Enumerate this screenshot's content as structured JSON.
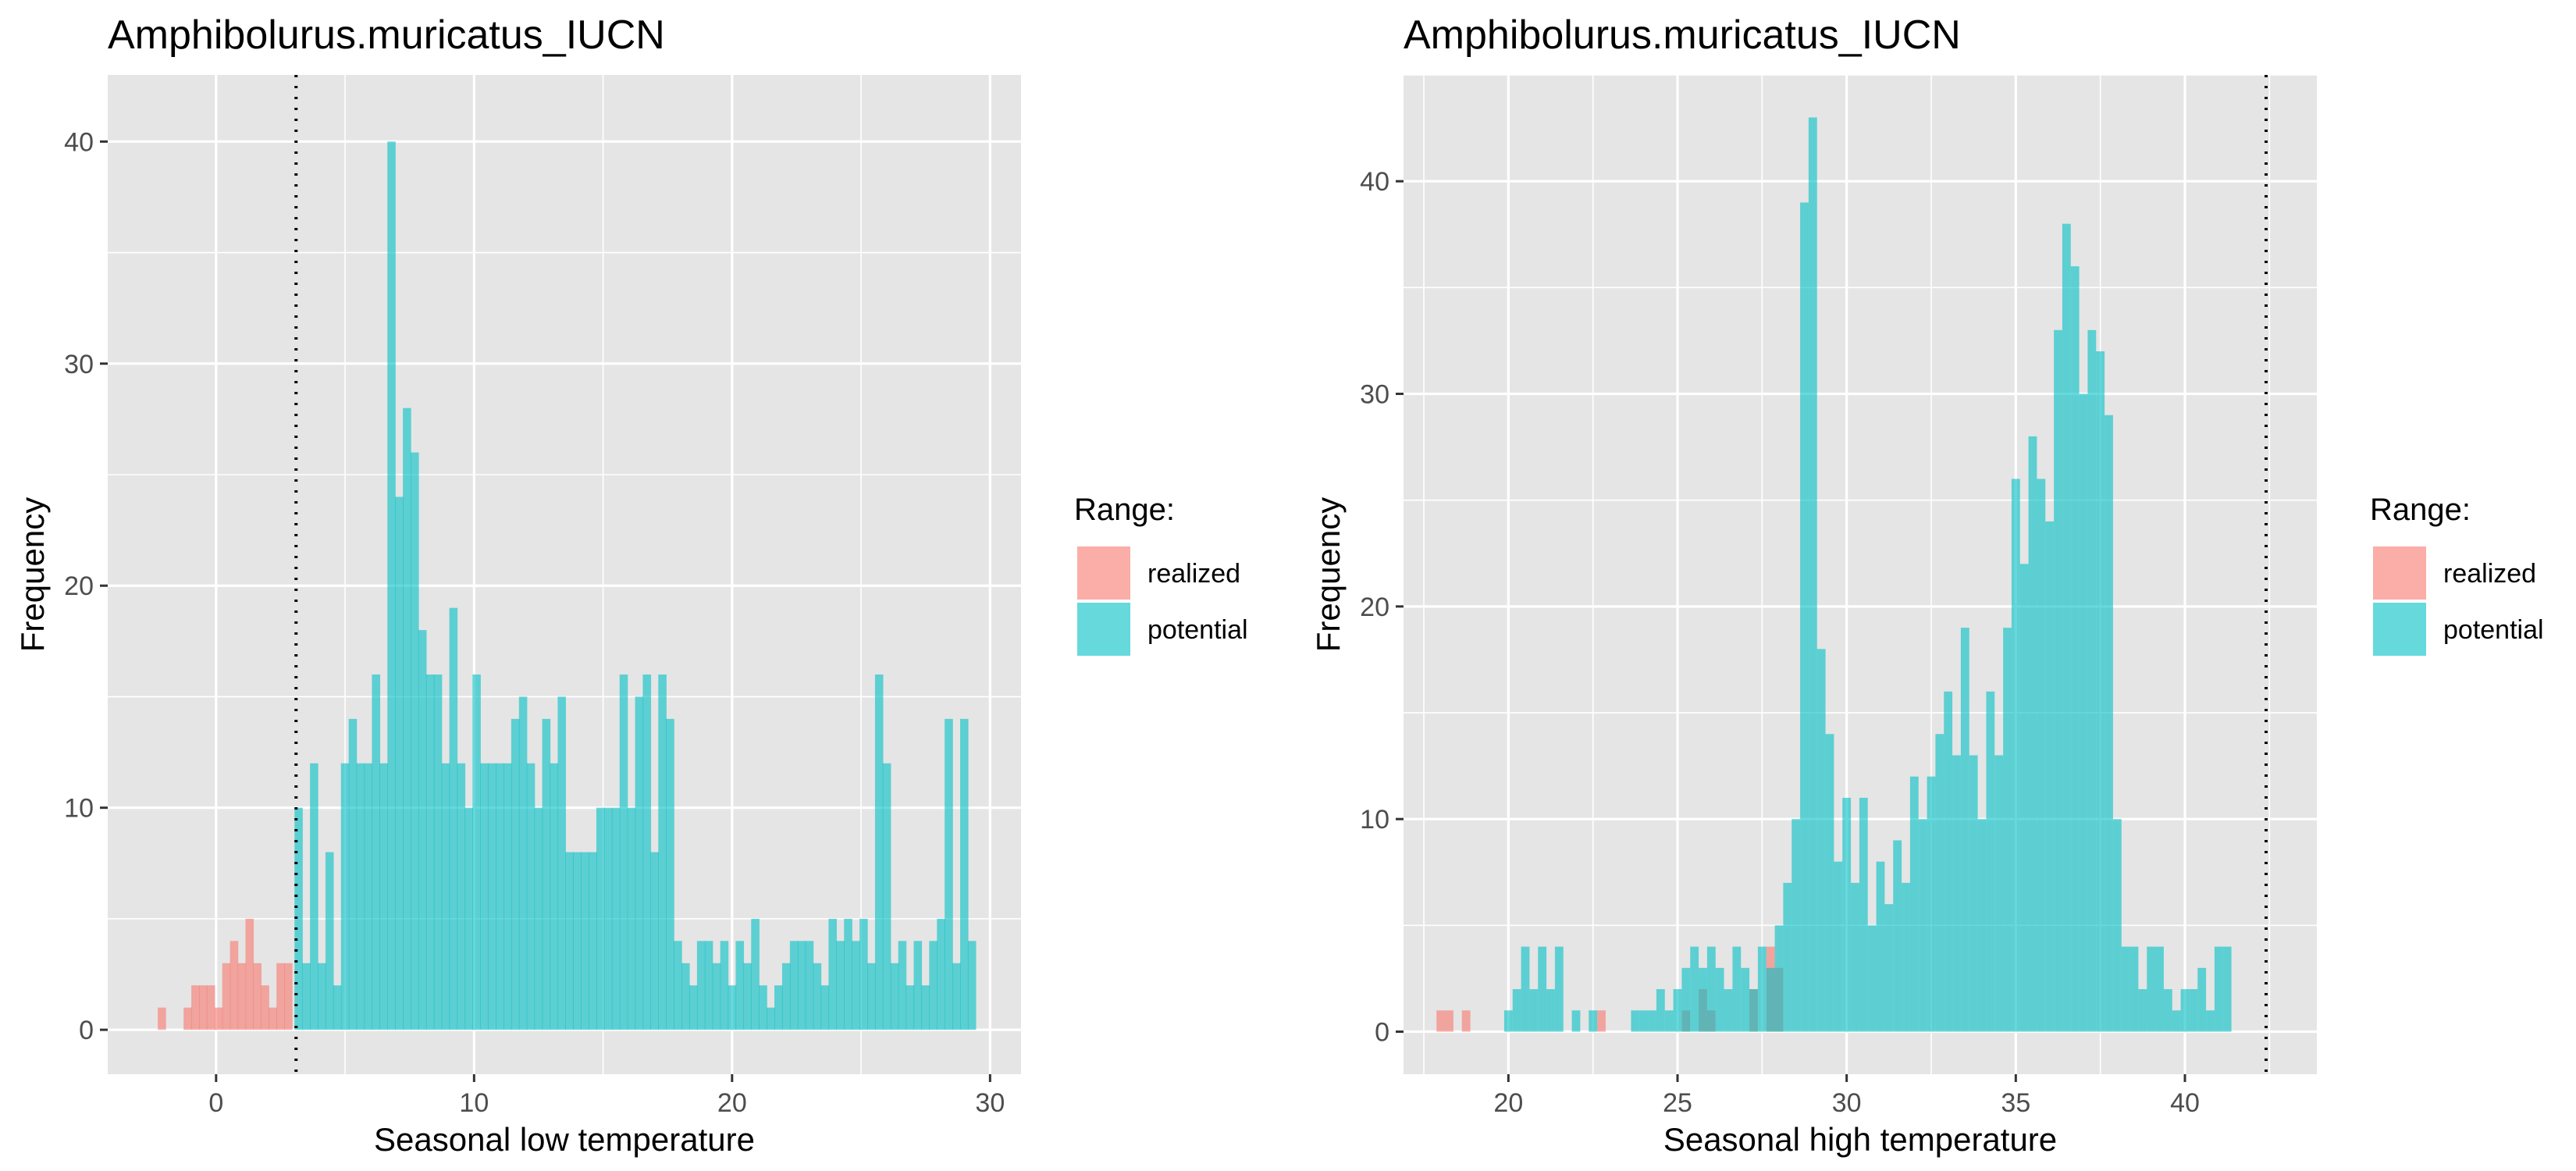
{
  "colors": {
    "panel_bg": "#E5E5E5",
    "grid": "#FFFFFF",
    "realized": "#F8766D",
    "potential": "#00BFC4",
    "overlap": "#7F9E9C"
  },
  "chart_data": [
    {
      "type": "histogram",
      "title": "Amphibolurus.muricatus_IUCN",
      "xlabel": "Seasonal low temperature",
      "ylabel": "Frequency",
      "xlim": [
        -4.2,
        31.2
      ],
      "ylim": [
        -2,
        43
      ],
      "x_ticks": [
        0,
        10,
        20,
        30
      ],
      "y_ticks": [
        0,
        10,
        20,
        30,
        40
      ],
      "bin_width": 0.32,
      "vline_x": 3.1,
      "legend": {
        "title": "Range:",
        "position": "right",
        "entries": [
          "realized",
          "potential"
        ]
      },
      "series": [
        {
          "name": "realized",
          "x": [
            -2.1,
            -1.1,
            -0.8,
            -0.5,
            -0.2,
            0.1,
            0.4,
            0.7,
            1.0,
            1.3,
            1.6,
            1.9,
            2.2,
            2.5,
            2.8
          ],
          "values": [
            1,
            1,
            2,
            2,
            2,
            1,
            3,
            4,
            3,
            5,
            3,
            2,
            1,
            3,
            3
          ]
        },
        {
          "name": "potential",
          "x": [
            3.2,
            3.5,
            3.8,
            4.1,
            4.4,
            4.7,
            5.0,
            5.3,
            5.6,
            5.9,
            6.2,
            6.5,
            6.8,
            7.1,
            7.4,
            7.7,
            8.0,
            8.3,
            8.6,
            8.9,
            9.2,
            9.5,
            9.8,
            10.1,
            10.4,
            10.7,
            11.0,
            11.3,
            11.6,
            11.9,
            12.2,
            12.5,
            12.8,
            13.1,
            13.4,
            13.7,
            14.0,
            14.3,
            14.6,
            14.9,
            15.2,
            15.5,
            15.8,
            16.1,
            16.4,
            16.7,
            17.0,
            17.3,
            17.6,
            17.9,
            18.2,
            18.5,
            18.8,
            19.1,
            19.4,
            19.7,
            20.0,
            20.3,
            20.6,
            20.9,
            21.2,
            21.5,
            21.8,
            22.1,
            22.4,
            22.7,
            23.0,
            23.3,
            23.6,
            23.9,
            24.2,
            24.5,
            24.8,
            25.1,
            25.4,
            25.7,
            26.0,
            26.3,
            26.6,
            26.9,
            27.2,
            27.5,
            27.8,
            28.1,
            28.4,
            28.7,
            29.0,
            29.3
          ],
          "values": [
            10,
            3,
            12,
            3,
            8,
            2,
            12,
            14,
            12,
            12,
            16,
            12,
            40,
            24,
            28,
            26,
            18,
            16,
            16,
            12,
            19,
            12,
            10,
            16,
            12,
            12,
            12,
            12,
            14,
            15,
            12,
            10,
            14,
            12,
            15,
            8,
            8,
            8,
            8,
            10,
            10,
            10,
            16,
            10,
            15,
            16,
            8,
            16,
            14,
            4,
            3,
            2,
            4,
            4,
            3,
            4,
            2,
            4,
            3,
            5,
            2,
            1,
            2,
            3,
            4,
            4,
            4,
            3,
            2,
            5,
            4,
            5,
            4,
            5,
            3,
            16,
            12,
            3,
            4,
            2,
            4,
            2,
            4,
            5,
            14,
            3,
            14,
            4
          ]
        }
      ]
    },
    {
      "type": "histogram",
      "title": "Amphibolurus.muricatus_IUCN",
      "xlabel": "Seasonal high temperature",
      "ylabel": "Frequency",
      "xlim": [
        16.9,
        43.9
      ],
      "ylim": [
        -2,
        45
      ],
      "x_ticks": [
        20,
        25,
        30,
        35,
        40
      ],
      "y_ticks": [
        0,
        10,
        20,
        30,
        40
      ],
      "bin_width": 0.25,
      "vline_x": 42.4,
      "legend": {
        "title": "Range:",
        "position": "right",
        "entries": [
          "realized",
          "potential"
        ]
      },
      "series": [
        {
          "name": "realized",
          "x": [
            18.0,
            18.25,
            18.75,
            22.75,
            25.25,
            25.75,
            26.0,
            27.25,
            27.75,
            28.0
          ],
          "values": [
            1,
            1,
            1,
            1,
            1,
            2,
            1,
            2,
            4,
            3
          ]
        },
        {
          "name": "potential",
          "x": [
            20.0,
            20.25,
            20.5,
            20.75,
            21.0,
            21.25,
            21.5,
            22.0,
            22.5,
            23.75,
            24.0,
            24.25,
            24.5,
            24.75,
            25.0,
            25.25,
            25.5,
            25.75,
            26.0,
            26.25,
            26.5,
            26.75,
            27.0,
            27.25,
            27.5,
            27.75,
            28.0,
            28.25,
            28.5,
            28.75,
            29.0,
            29.25,
            29.5,
            29.75,
            30.0,
            30.25,
            30.5,
            30.75,
            31.0,
            31.25,
            31.5,
            31.75,
            32.0,
            32.25,
            32.5,
            32.75,
            33.0,
            33.25,
            33.5,
            33.75,
            34.0,
            34.25,
            34.5,
            34.75,
            35.0,
            35.25,
            35.5,
            35.75,
            36.0,
            36.25,
            36.5,
            36.75,
            37.0,
            37.25,
            37.5,
            37.75,
            38.0,
            38.25,
            38.5,
            38.75,
            39.0,
            39.25,
            39.5,
            39.75,
            40.0,
            40.25,
            40.5,
            40.75,
            41.0,
            41.25
          ],
          "values": [
            1,
            2,
            4,
            2,
            4,
            2,
            4,
            1,
            1,
            1,
            1,
            1,
            2,
            1,
            2,
            3,
            4,
            3,
            4,
            3,
            2,
            4,
            3,
            2,
            4,
            3,
            5,
            7,
            10,
            39,
            43,
            18,
            14,
            8,
            11,
            7,
            11,
            5,
            8,
            6,
            9,
            7,
            12,
            10,
            12,
            14,
            16,
            13,
            19,
            13,
            10,
            16,
            13,
            19,
            26,
            22,
            28,
            26,
            24,
            33,
            38,
            36,
            30,
            33,
            32,
            29,
            10,
            4,
            4,
            2,
            4,
            4,
            2,
            1,
            2,
            2,
            3,
            1,
            4,
            4
          ]
        }
      ]
    }
  ]
}
